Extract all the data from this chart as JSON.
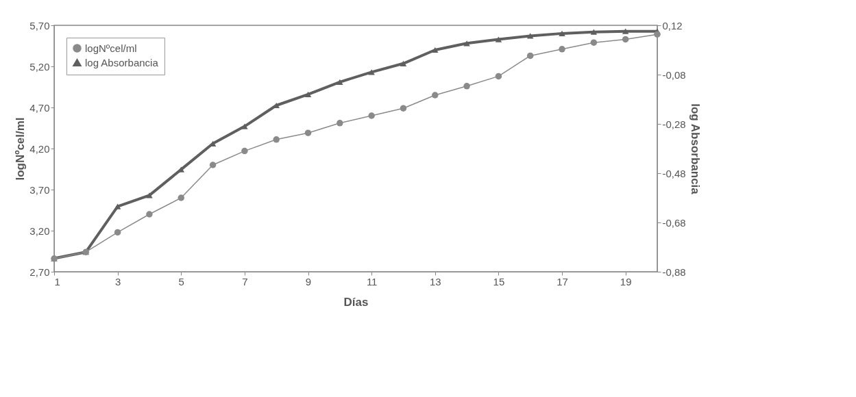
{
  "chart_data": {
    "type": "line",
    "xlabel": "Días",
    "ylabel": "logNºcel/ml",
    "y2label": "log Absorbancia",
    "x": [
      1,
      2,
      3,
      4,
      5,
      6,
      7,
      8,
      9,
      10,
      11,
      12,
      13,
      14,
      15,
      16,
      17,
      18,
      19,
      20
    ],
    "series": [
      {
        "name": "logNºcel/ml",
        "color": "#8a8a8a",
        "marker": "circle",
        "values": [
          2.86,
          2.94,
          3.18,
          3.4,
          3.6,
          4.0,
          4.17,
          4.31,
          4.39,
          4.51,
          4.6,
          4.69,
          4.85,
          4.96,
          5.08,
          5.33,
          5.41,
          5.49,
          5.53,
          5.59
        ]
      },
      {
        "name": "log Absorbancia",
        "color": "#5f5f5f",
        "marker": "triangle",
        "axis": "y2",
        "values": [
          -0.826,
          -0.8,
          -0.615,
          -0.57,
          -0.465,
          -0.36,
          -0.29,
          -0.205,
          -0.16,
          -0.11,
          -0.07,
          -0.035,
          0.02,
          0.047,
          0.063,
          0.077,
          0.087,
          0.093,
          0.096,
          0.096
        ]
      }
    ],
    "xlim": [
      1,
      20
    ],
    "xticks": [
      1,
      3,
      5,
      7,
      9,
      11,
      13,
      15,
      17,
      19
    ],
    "ylim": [
      2.7,
      5.7
    ],
    "yticks": [
      {
        "value": 2.7,
        "label": "2,70"
      },
      {
        "value": 3.2,
        "label": "3,20"
      },
      {
        "value": 3.7,
        "label": "3,70"
      },
      {
        "value": 4.2,
        "label": "4,20"
      },
      {
        "value": 4.7,
        "label": "4,70"
      },
      {
        "value": 5.2,
        "label": "5,20"
      },
      {
        "value": 5.7,
        "label": "5,70"
      }
    ],
    "y2lim": [
      -0.88,
      0.12
    ],
    "y2ticks": [
      {
        "value": -0.88,
        "label": "-0,88"
      },
      {
        "value": -0.68,
        "label": "-0,68"
      },
      {
        "value": -0.48,
        "label": "-0,48"
      },
      {
        "value": -0.28,
        "label": "-0,28"
      },
      {
        "value": -0.08,
        "label": "-0,08"
      },
      {
        "value": 0.12,
        "label": "0,12"
      }
    ],
    "grid": false,
    "legend": "top left"
  }
}
